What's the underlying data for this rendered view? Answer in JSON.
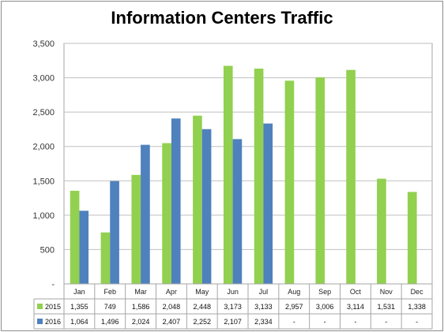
{
  "chart_data": {
    "type": "bar",
    "title": "Information Centers Traffic",
    "xlabel": "",
    "ylabel": "",
    "ylim": [
      0,
      3500
    ],
    "yticks": [
      0,
      500,
      1000,
      1500,
      2000,
      2500,
      3000,
      3500
    ],
    "ytick_labels": [
      "-",
      "500",
      "1,000",
      "1,500",
      "2,000",
      "2,500",
      "3,000",
      "3,500"
    ],
    "grid": true,
    "categories": [
      "Jan",
      "Feb",
      "Mar",
      "Apr",
      "May",
      "Jun",
      "Jul",
      "Aug",
      "Sep",
      "Oct",
      "Nov",
      "Dec"
    ],
    "series": [
      {
        "name": "2015",
        "color": "#92d050",
        "values": [
          1355,
          749,
          1586,
          2048,
          2448,
          3173,
          3133,
          2957,
          3006,
          3114,
          1531,
          1338
        ],
        "labels": [
          "1,355",
          "749",
          "1,586",
          "2,048",
          "2,448",
          "3,173",
          "3,133",
          "2,957",
          "3,006",
          "3,114",
          "1,531",
          "1,338"
        ]
      },
      {
        "name": "2016",
        "color": "#4f81bd",
        "values": [
          1064,
          1496,
          2024,
          2407,
          2252,
          2107,
          2334,
          null,
          null,
          null,
          null,
          null
        ],
        "labels": [
          "1,064",
          "1,496",
          "2,024",
          "2,407",
          "2,252",
          "2,107",
          "2,334",
          "-",
          "-",
          "-",
          "-",
          "-"
        ]
      }
    ],
    "data_table": true
  }
}
